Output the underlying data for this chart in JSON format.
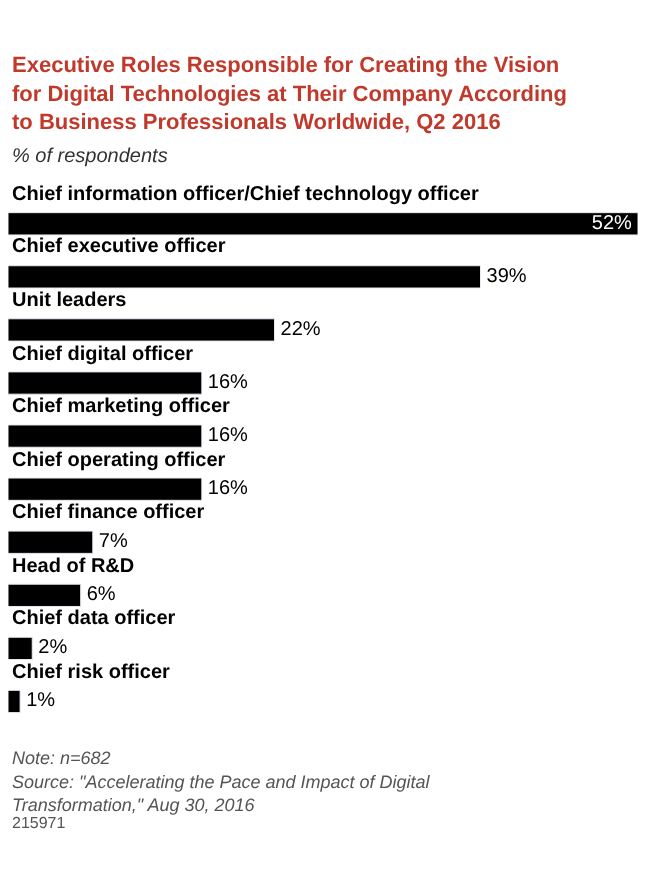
{
  "chart_data": {
    "type": "bar",
    "orientation": "horizontal",
    "title": "Executive Roles Responsible for Creating the Vision for Digital Technologies at Their Company According to Business Professionals Worldwide, Q2 2016",
    "subtitle": "% of respondents",
    "categories": [
      "Chief information officer/Chief technology officer",
      "Chief executive officer",
      "Unit leaders",
      "Chief digital officer",
      "Chief marketing officer",
      "Chief operating officer",
      "Chief finance officer",
      "Head of R&D",
      "Chief data officer",
      "Chief risk officer"
    ],
    "values": [
      52,
      39,
      22,
      16,
      16,
      16,
      7,
      6,
      2,
      1
    ],
    "value_labels": [
      "52%",
      "39%",
      "22%",
      "16%",
      "16%",
      "16%",
      "7%",
      "6%",
      "2%",
      "1%"
    ],
    "color": "#000000",
    "legend": false,
    "annotations": [
      "Note: n=682",
      "Source: \"Accelerating the Pace and Impact of Digital Transformation,\" Aug 30, 2016",
      "215971"
    ]
  }
}
